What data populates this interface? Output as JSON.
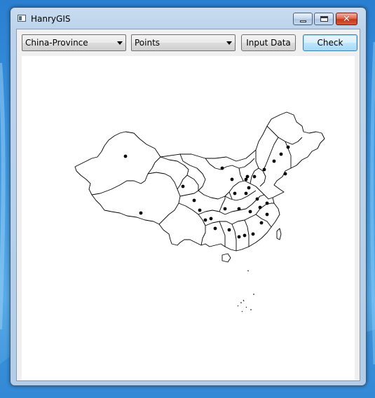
{
  "window": {
    "title": "HanryGIS"
  },
  "toolbar": {
    "region_select": {
      "selected": "China-Province"
    },
    "layer_select": {
      "selected": "Points"
    },
    "input_data_label": "Input Data",
    "check_label": "Check"
  },
  "map": {
    "layer": "China provincial boundaries",
    "point_count": 33,
    "point_color": "#000000",
    "boundary_color": "#000000"
  },
  "colors": {
    "desktop": "#3d97e0",
    "window_frame": "#b9d1ea",
    "close_button": "#c7381c"
  }
}
